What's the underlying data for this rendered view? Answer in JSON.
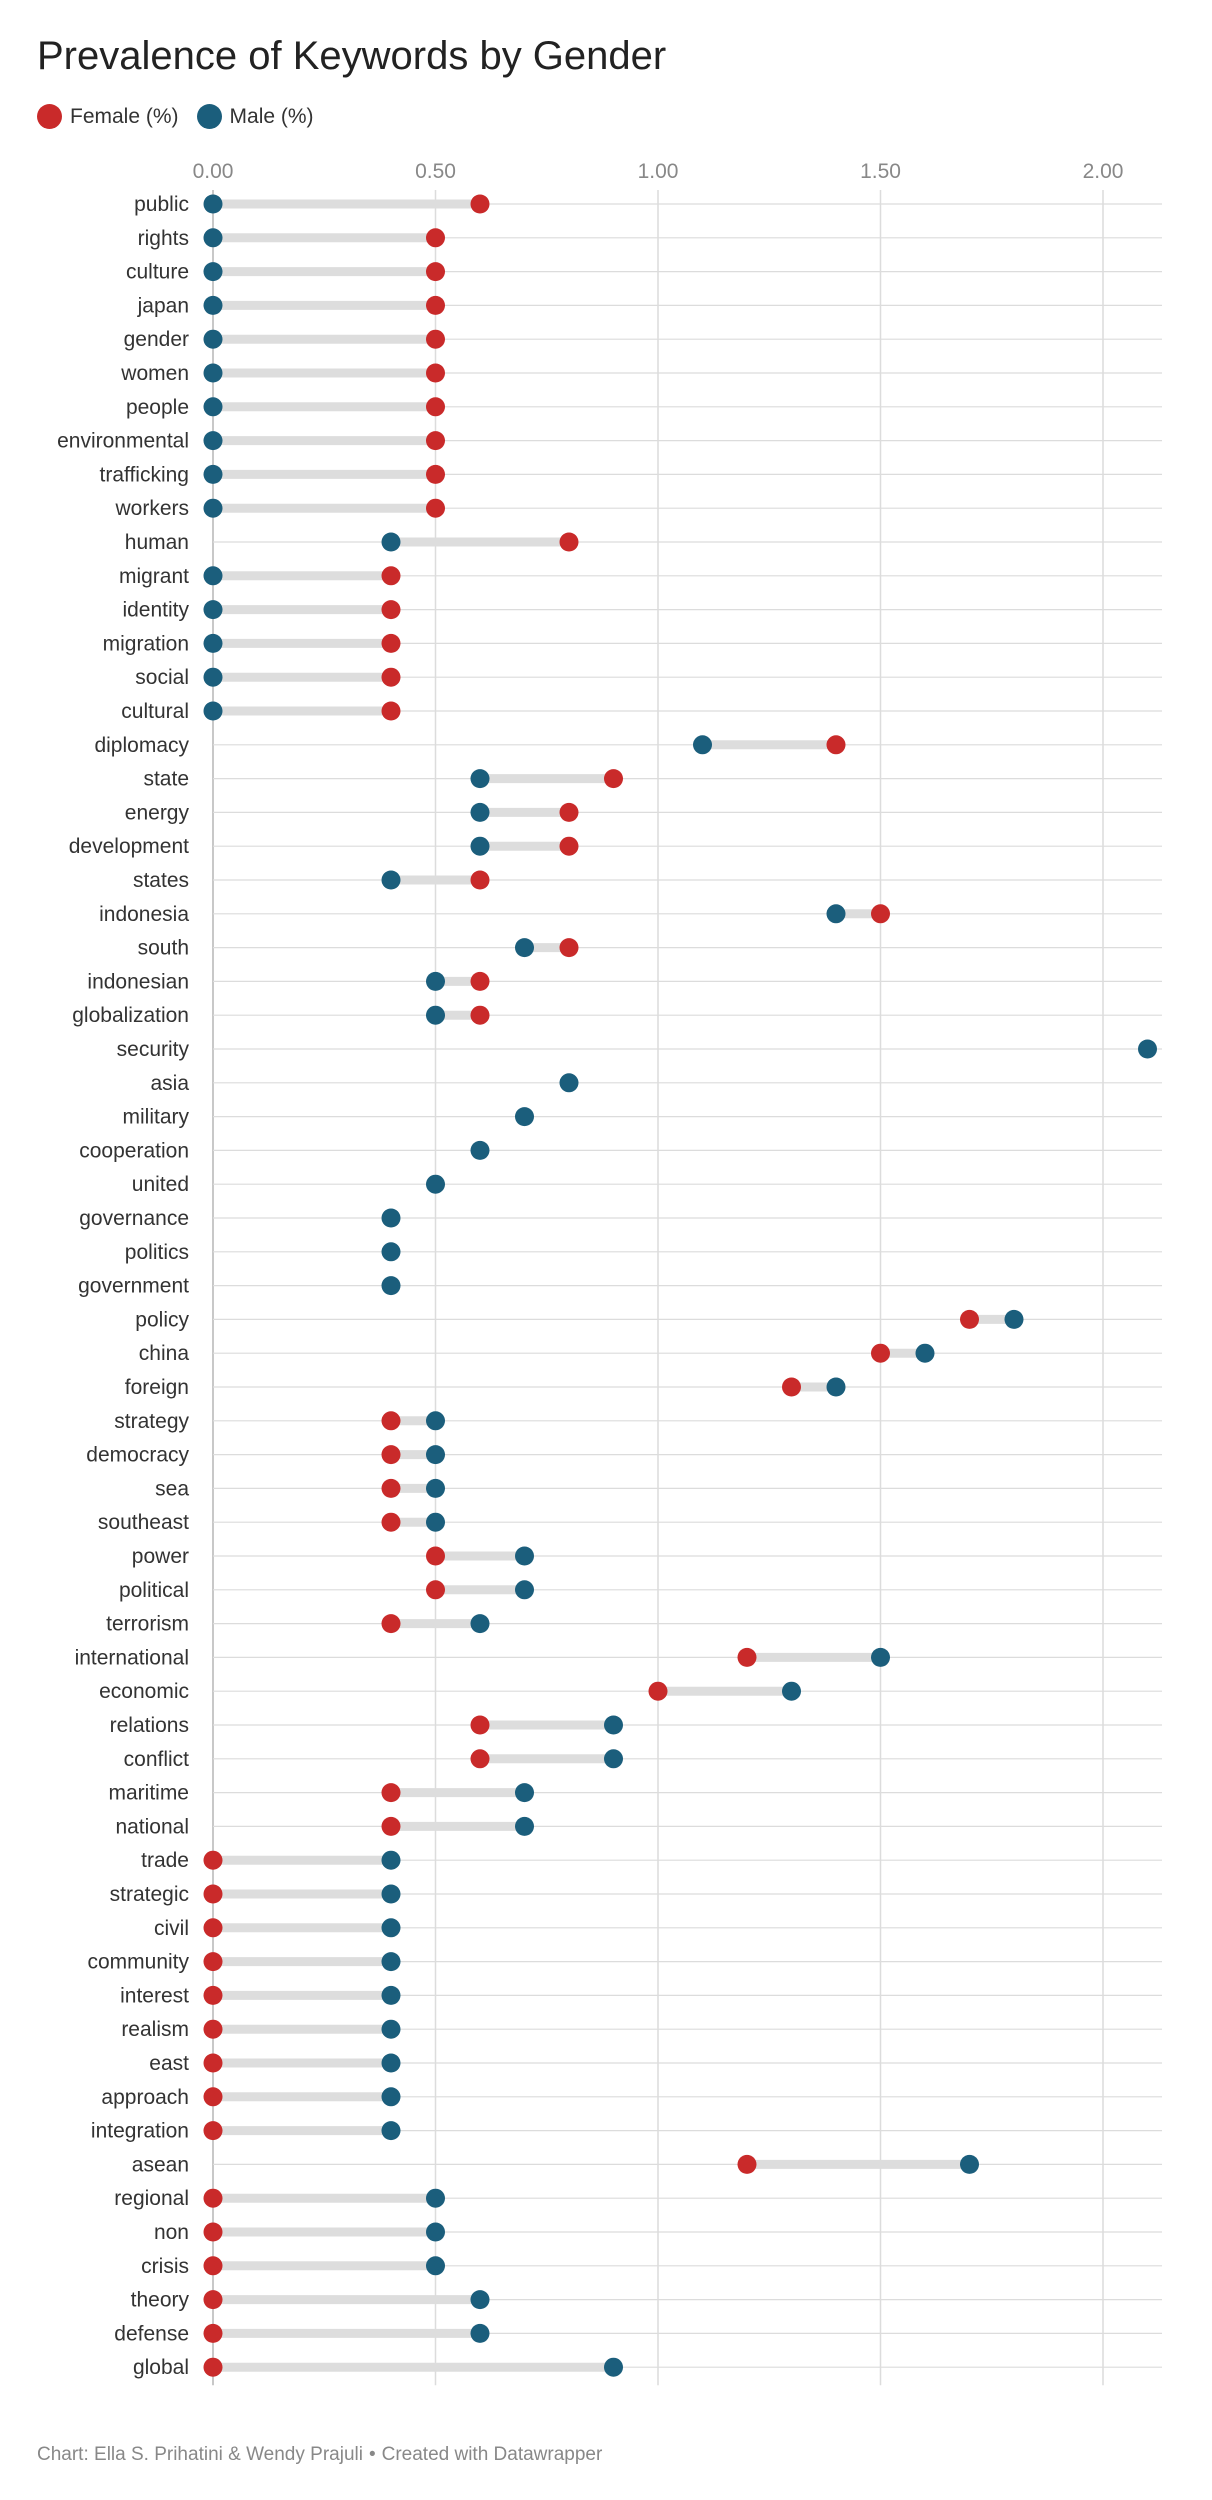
{
  "colors": {
    "female": "#c92a2a",
    "male": "#1b5e7c",
    "connector": "#dddddd",
    "grid": "#dcdcdc"
  },
  "footer": {
    "credit": "Chart: Ella S. Prihatini & Wendy Prajuli",
    "separator": "•",
    "tool": "Created with Datawrapper"
  },
  "chart_data": {
    "type": "dumbbell",
    "title": "Prevalence of Keywords by Gender",
    "xlabel": "",
    "ylabel": "",
    "xlim": [
      0,
      2.1
    ],
    "x_ticks": [
      0,
      0.5,
      1,
      1.5,
      2
    ],
    "x_tick_labels": [
      "0.00",
      "0.50",
      "1.00",
      "1.50",
      "2.00"
    ],
    "grid": true,
    "legend_position": "top-left",
    "series": [
      {
        "name": "Female (%)",
        "color": "#c92a2a"
      },
      {
        "name": "Male (%)",
        "color": "#1b5e7c"
      }
    ],
    "rows": [
      {
        "keyword": "public",
        "female": 0.6,
        "male": 0
      },
      {
        "keyword": "rights",
        "female": 0.5,
        "male": 0
      },
      {
        "keyword": "culture",
        "female": 0.5,
        "male": 0
      },
      {
        "keyword": "japan",
        "female": 0.5,
        "male": 0
      },
      {
        "keyword": "gender",
        "female": 0.5,
        "male": 0
      },
      {
        "keyword": "women",
        "female": 0.5,
        "male": 0
      },
      {
        "keyword": "people",
        "female": 0.5,
        "male": 0
      },
      {
        "keyword": "environmental",
        "female": 0.5,
        "male": 0
      },
      {
        "keyword": "trafficking",
        "female": 0.5,
        "male": 0
      },
      {
        "keyword": "workers",
        "female": 0.5,
        "male": 0
      },
      {
        "keyword": "human",
        "female": 0.8,
        "male": 0.4
      },
      {
        "keyword": "migrant",
        "female": 0.4,
        "male": 0
      },
      {
        "keyword": "identity",
        "female": 0.4,
        "male": 0
      },
      {
        "keyword": "migration",
        "female": 0.4,
        "male": 0
      },
      {
        "keyword": "social",
        "female": 0.4,
        "male": 0
      },
      {
        "keyword": "cultural",
        "female": 0.4,
        "male": 0
      },
      {
        "keyword": "diplomacy",
        "female": 1.4,
        "male": 1.1
      },
      {
        "keyword": "state",
        "female": 0.9,
        "male": 0.6
      },
      {
        "keyword": "energy",
        "female": 0.8,
        "male": 0.6
      },
      {
        "keyword": "development",
        "female": 0.8,
        "male": 0.6
      },
      {
        "keyword": "states",
        "female": 0.6,
        "male": 0.4
      },
      {
        "keyword": "indonesia",
        "female": 1.5,
        "male": 1.4
      },
      {
        "keyword": "south",
        "female": 0.8,
        "male": 0.7
      },
      {
        "keyword": "indonesian",
        "female": 0.6,
        "male": 0.5
      },
      {
        "keyword": "globalization",
        "female": 0.6,
        "male": 0.5
      },
      {
        "keyword": "security",
        "female": null,
        "male": 2.1
      },
      {
        "keyword": "asia",
        "female": null,
        "male": 0.8
      },
      {
        "keyword": "military",
        "female": null,
        "male": 0.7
      },
      {
        "keyword": "cooperation",
        "female": null,
        "male": 0.6
      },
      {
        "keyword": "united",
        "female": null,
        "male": 0.5
      },
      {
        "keyword": "governance",
        "female": null,
        "male": 0.4
      },
      {
        "keyword": "politics",
        "female": null,
        "male": 0.4
      },
      {
        "keyword": "government",
        "female": null,
        "male": 0.4
      },
      {
        "keyword": "policy",
        "female": 1.7,
        "male": 1.8
      },
      {
        "keyword": "china",
        "female": 1.5,
        "male": 1.6
      },
      {
        "keyword": "foreign",
        "female": 1.3,
        "male": 1.4
      },
      {
        "keyword": "strategy",
        "female": 0.4,
        "male": 0.5
      },
      {
        "keyword": "democracy",
        "female": 0.4,
        "male": 0.5
      },
      {
        "keyword": "sea",
        "female": 0.4,
        "male": 0.5
      },
      {
        "keyword": "southeast",
        "female": 0.4,
        "male": 0.5
      },
      {
        "keyword": "power",
        "female": 0.5,
        "male": 0.7
      },
      {
        "keyword": "political",
        "female": 0.5,
        "male": 0.7
      },
      {
        "keyword": "terrorism",
        "female": 0.4,
        "male": 0.6
      },
      {
        "keyword": "international",
        "female": 1.2,
        "male": 1.5
      },
      {
        "keyword": "economic",
        "female": 1.0,
        "male": 1.3
      },
      {
        "keyword": "relations",
        "female": 0.6,
        "male": 0.9
      },
      {
        "keyword": "conflict",
        "female": 0.6,
        "male": 0.9
      },
      {
        "keyword": "maritime",
        "female": 0.4,
        "male": 0.7
      },
      {
        "keyword": "national",
        "female": 0.4,
        "male": 0.7
      },
      {
        "keyword": "trade",
        "female": 0,
        "male": 0.4
      },
      {
        "keyword": "strategic",
        "female": 0,
        "male": 0.4
      },
      {
        "keyword": "civil",
        "female": 0,
        "male": 0.4
      },
      {
        "keyword": "community",
        "female": 0,
        "male": 0.4
      },
      {
        "keyword": "interest",
        "female": 0,
        "male": 0.4
      },
      {
        "keyword": "realism",
        "female": 0,
        "male": 0.4
      },
      {
        "keyword": "east",
        "female": 0,
        "male": 0.4
      },
      {
        "keyword": "approach",
        "female": 0,
        "male": 0.4
      },
      {
        "keyword": "integration",
        "female": 0,
        "male": 0.4
      },
      {
        "keyword": "asean",
        "female": 1.2,
        "male": 1.7
      },
      {
        "keyword": "regional",
        "female": 0,
        "male": 0.5
      },
      {
        "keyword": "non",
        "female": 0,
        "male": 0.5
      },
      {
        "keyword": "crisis",
        "female": 0,
        "male": 0.5
      },
      {
        "keyword": "theory",
        "female": 0,
        "male": 0.6
      },
      {
        "keyword": "defense",
        "female": 0,
        "male": 0.6
      },
      {
        "keyword": "global",
        "female": 0,
        "male": 0.9
      }
    ]
  }
}
